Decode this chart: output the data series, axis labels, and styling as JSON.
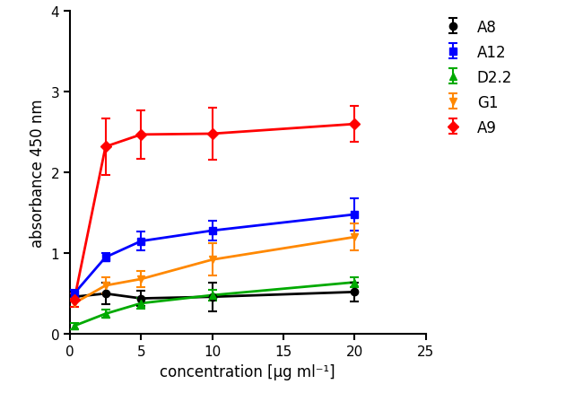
{
  "series": {
    "A8": {
      "color": "#000000",
      "marker": "o",
      "markersize": 6,
      "x": [
        0.3,
        2.5,
        5,
        10,
        20
      ],
      "y": [
        0.46,
        0.5,
        0.44,
        0.46,
        0.52
      ],
      "yerr": [
        0.05,
        0.13,
        0.09,
        0.18,
        0.12
      ]
    },
    "A12": {
      "color": "#0000FF",
      "marker": "s",
      "markersize": 6,
      "x": [
        0.3,
        2.5,
        5,
        10,
        20
      ],
      "y": [
        0.5,
        0.95,
        1.15,
        1.28,
        1.48
      ],
      "yerr": [
        0.05,
        0.05,
        0.12,
        0.12,
        0.2
      ]
    },
    "D2.2": {
      "color": "#00AA00",
      "marker": "^",
      "markersize": 6,
      "x": [
        0.3,
        2.5,
        5,
        10,
        20
      ],
      "y": [
        0.1,
        0.25,
        0.38,
        0.48,
        0.64
      ],
      "yerr": [
        0.04,
        0.05,
        0.07,
        0.07,
        0.06
      ]
    },
    "G1": {
      "color": "#FF8800",
      "marker": "v",
      "markersize": 6,
      "x": [
        0.3,
        2.5,
        5,
        10,
        20
      ],
      "y": [
        0.38,
        0.6,
        0.68,
        0.92,
        1.2
      ],
      "yerr": [
        0.05,
        0.1,
        0.1,
        0.2,
        0.17
      ]
    },
    "A9": {
      "color": "#FF0000",
      "marker": "D",
      "markersize": 6,
      "x": [
        0.3,
        2.5,
        5,
        10,
        20
      ],
      "y": [
        0.42,
        2.32,
        2.47,
        2.48,
        2.6
      ],
      "yerr": [
        0.08,
        0.35,
        0.3,
        0.32,
        0.22
      ]
    }
  },
  "xlabel": "concentration [μg ml⁻¹]",
  "ylabel": "absorbance 450 nm",
  "xlim": [
    0,
    25
  ],
  "ylim": [
    0,
    4
  ],
  "yticks": [
    0,
    1,
    2,
    3,
    4
  ],
  "xticks": [
    0,
    5,
    10,
    15,
    20,
    25
  ],
  "legend_order": [
    "A8",
    "A12",
    "D2.2",
    "G1",
    "A9"
  ],
  "background_color": "#ffffff",
  "figwidth": 6.5,
  "figheight": 4.39,
  "dpi": 100
}
